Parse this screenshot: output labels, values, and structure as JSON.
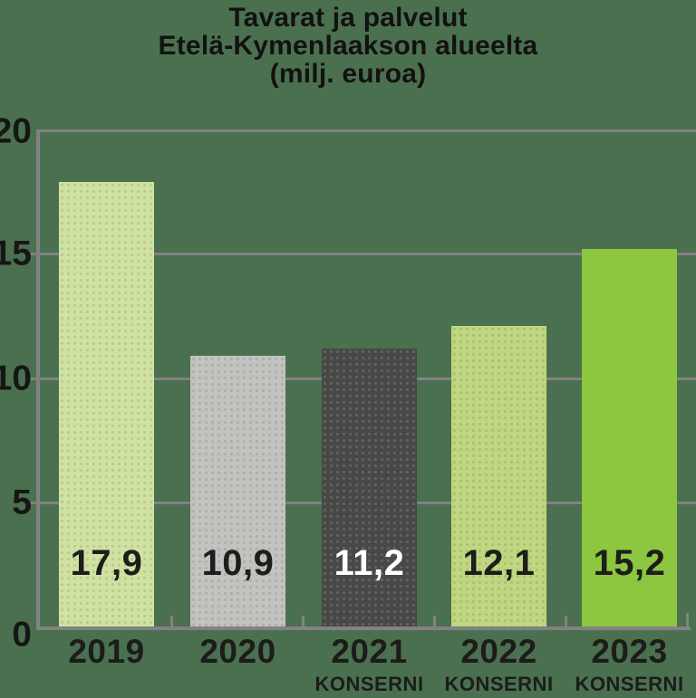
{
  "title": {
    "line1": "Tavarat ja palvelut",
    "line2": "Etelä-Kymenlaakson alueelta",
    "line3": "(milj. euroa)"
  },
  "chart_data": {
    "type": "bar",
    "title": "Tavarat ja palvelut Etelä-Kymenlaakson alueelta (milj. euroa)",
    "categories": [
      "2019",
      "2020",
      "2021",
      "2022",
      "2023"
    ],
    "values": [
      17.9,
      10.9,
      11.2,
      12.1,
      15.2
    ],
    "value_labels": [
      "17,9",
      "10,9",
      "11,2",
      "12,1",
      "15,2"
    ],
    "sublabels": [
      "",
      "",
      "KONSERNI",
      "KONSERNI",
      "KONSERNI"
    ],
    "bar_colors": [
      "#cfe2a2",
      "#c2c2c0",
      "#484847",
      "#bed780",
      "#8dc63f"
    ],
    "value_label_colors": [
      "#1d1d1b",
      "#1d1d1b",
      "#ffffff",
      "#1d1d1b",
      "#1d1d1b"
    ],
    "bar_textures": [
      "dark-dots",
      "dark-dots",
      "light-dots",
      "dark-dots",
      "none"
    ],
    "xlabel": "",
    "ylabel": "",
    "ylim": [
      0,
      20
    ],
    "yticks": [
      20,
      15,
      10,
      5,
      0
    ],
    "ytick_labels": [
      "20",
      "15",
      "10",
      "5",
      "0"
    ],
    "grid": "horizontal gridlines at 5-unit intervals",
    "legend": "none"
  },
  "colors": {
    "background": "#4b7050",
    "axis": "#828282",
    "text": "#1d1d1b"
  }
}
